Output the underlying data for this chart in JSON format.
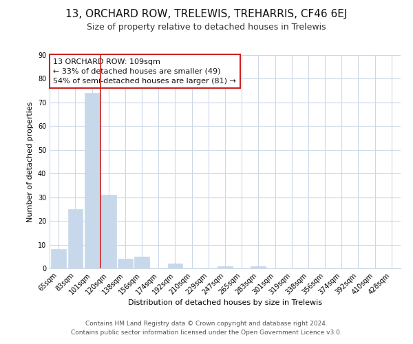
{
  "title": "13, ORCHARD ROW, TRELEWIS, TREHARRIS, CF46 6EJ",
  "subtitle": "Size of property relative to detached houses in Trelewis",
  "xlabel": "Distribution of detached houses by size in Trelewis",
  "ylabel": "Number of detached properties",
  "bar_labels": [
    "65sqm",
    "83sqm",
    "101sqm",
    "120sqm",
    "138sqm",
    "156sqm",
    "174sqm",
    "192sqm",
    "210sqm",
    "229sqm",
    "247sqm",
    "265sqm",
    "283sqm",
    "301sqm",
    "319sqm",
    "338sqm",
    "356sqm",
    "374sqm",
    "392sqm",
    "410sqm",
    "428sqm"
  ],
  "bar_values": [
    8,
    25,
    74,
    31,
    4,
    5,
    0,
    2,
    0,
    0,
    1,
    0,
    1,
    0,
    0,
    0,
    0,
    0,
    0,
    0,
    0
  ],
  "bar_color": "#c8d8eb",
  "red_line_x": 2.5,
  "red_line_color": "#cc2222",
  "ylim": [
    0,
    90
  ],
  "yticks": [
    0,
    10,
    20,
    30,
    40,
    50,
    60,
    70,
    80,
    90
  ],
  "annotation_line1": "13 ORCHARD ROW: 109sqm",
  "annotation_line2": "← 33% of detached houses are smaller (49)",
  "annotation_line3": "54% of semi-detached houses are larger (81) →",
  "footer_line1": "Contains HM Land Registry data © Crown copyright and database right 2024.",
  "footer_line2": "Contains public sector information licensed under the Open Government Licence v3.0.",
  "background_color": "#ffffff",
  "grid_color": "#ccd8e8",
  "title_fontsize": 11,
  "subtitle_fontsize": 9,
  "annotation_fontsize": 8,
  "ylabel_fontsize": 8,
  "xlabel_fontsize": 8,
  "tick_fontsize": 7,
  "footer_fontsize": 6.5
}
